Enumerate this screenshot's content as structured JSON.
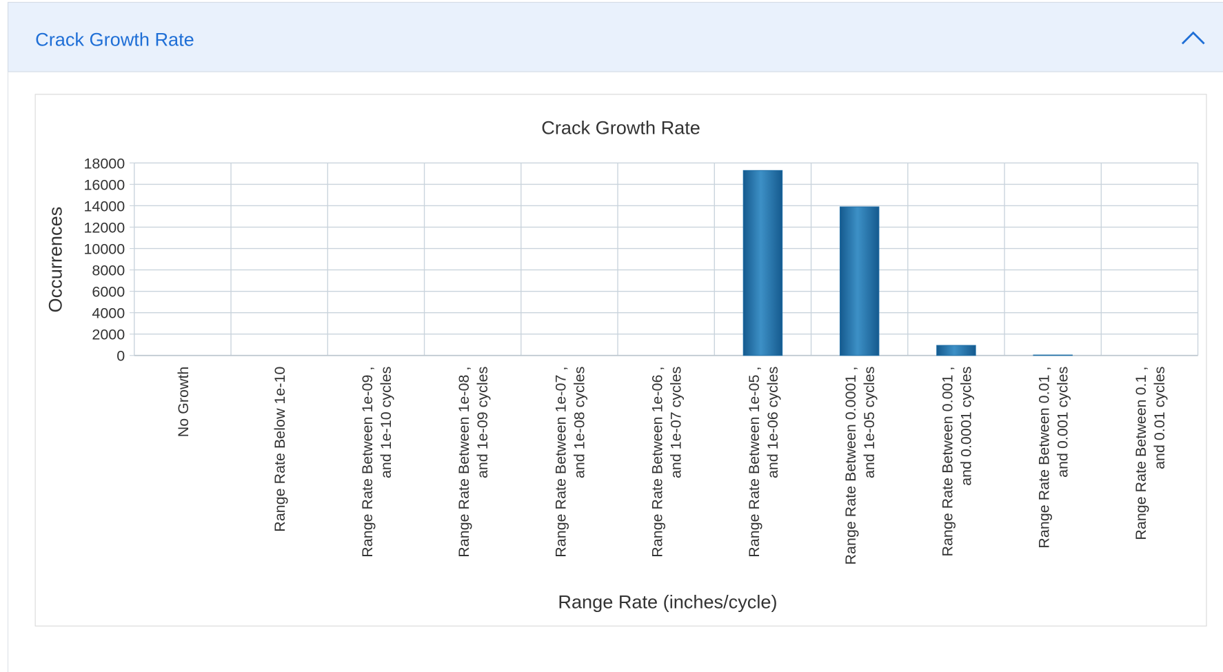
{
  "panel": {
    "title": "Crack Growth Rate"
  },
  "chart_data": {
    "type": "bar",
    "title": "Crack Growth Rate",
    "x_label": "Range Rate (inches/cycle)",
    "y_label": "Occurrences",
    "categories": [
      "No Growth",
      "Range Rate Below 1e-10",
      "Range Rate Between 1e-09 , and 1e-10 cycles",
      "Range Rate Between 1e-08 , and 1e-09 cycles",
      "Range Rate Between 1e-07 , and 1e-08 cycles",
      "Range Rate Between 1e-06 , and 1e-07 cycles",
      "Range Rate Between 1e-05 , and 1e-06 cycles",
      "Range Rate Between 0.0001 , and 1e-05 cycles",
      "Range Rate Between 0.001 , and 0.0001 cycles",
      "Range Rate Between 0.01 , and 0.001 cycles",
      "Range Rate Between 0.1 , and 0.01 cycles"
    ],
    "values": [
      0,
      0,
      0,
      0,
      0,
      0,
      17300,
      13900,
      950,
      50,
      0
    ],
    "color": "#1f6fa8",
    "ylim": [
      0,
      18000
    ],
    "yticks": [
      0,
      2000,
      4000,
      6000,
      8000,
      10000,
      12000,
      14000,
      16000,
      18000
    ],
    "grid": true
  }
}
